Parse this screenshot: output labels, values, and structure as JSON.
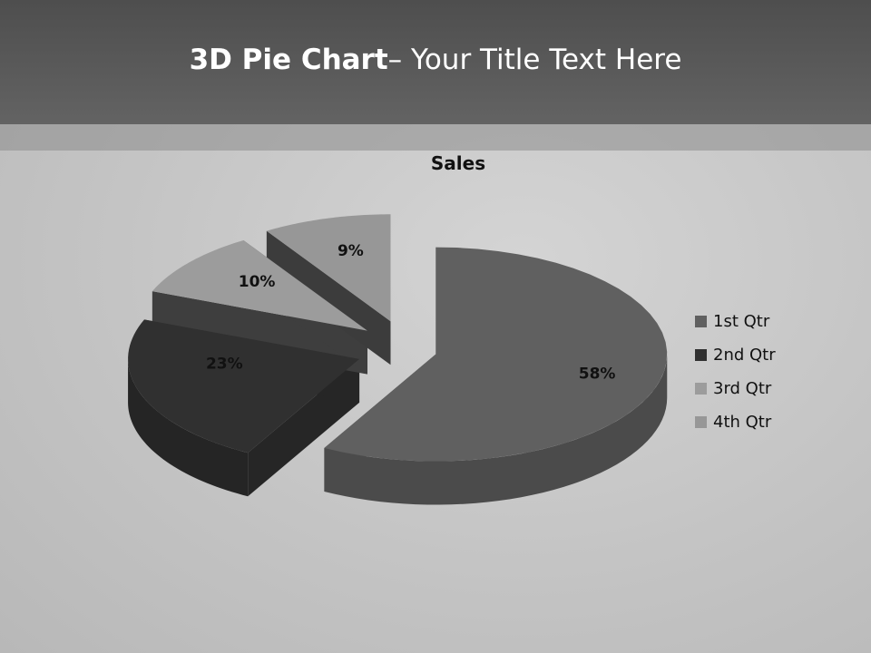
{
  "slide": {
    "title_bold": "3D Pie Chart",
    "title_rest": "– Your Title Text Here"
  },
  "chart_data": {
    "type": "pie",
    "variant": "3d-exploded",
    "title": "Sales",
    "categories": [
      "1st Qtr",
      "2nd Qtr",
      "3rd Qtr",
      "4th Qtr"
    ],
    "values": [
      58,
      23,
      10,
      9
    ],
    "labels": [
      "58%",
      "23%",
      "10%",
      "9%"
    ],
    "colors": [
      "#606060",
      "#303030",
      "#9c9c9c",
      "#979797"
    ],
    "legend_position": "right"
  }
}
